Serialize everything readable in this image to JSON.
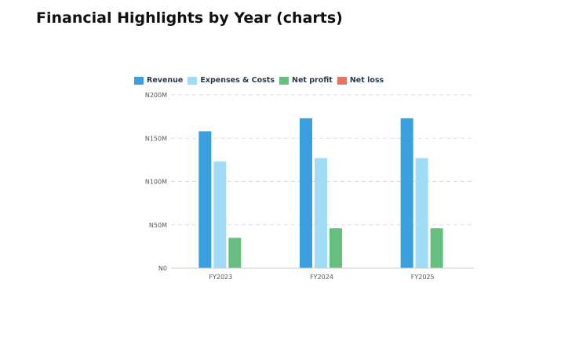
{
  "page": {
    "title": "Financial Highlights by Year (charts)"
  },
  "chart_data": {
    "type": "bar",
    "categories": [
      "FY2023",
      "FY2024",
      "FY2025"
    ],
    "series": [
      {
        "name": "Revenue",
        "color": "#3a9fdf",
        "values": [
          158,
          173,
          173
        ]
      },
      {
        "name": "Expenses & Costs",
        "color": "#a0dcf8",
        "values": [
          123,
          127,
          127
        ]
      },
      {
        "name": "Net profit",
        "color": "#66bf7e",
        "values": [
          35,
          46,
          46
        ]
      },
      {
        "name": "Net loss",
        "color": "#e8735f",
        "values": [
          0,
          0,
          0
        ]
      }
    ],
    "y_ticks": [
      {
        "value": 0,
        "label": "N0"
      },
      {
        "value": 50,
        "label": "N50M"
      },
      {
        "value": 100,
        "label": "N100M"
      },
      {
        "value": 150,
        "label": "N150M"
      },
      {
        "value": 200,
        "label": "N200M"
      }
    ],
    "ylim": [
      0,
      200
    ],
    "title": "",
    "xlabel": "",
    "ylabel": "",
    "grid": true,
    "legend_position": "top-left"
  }
}
